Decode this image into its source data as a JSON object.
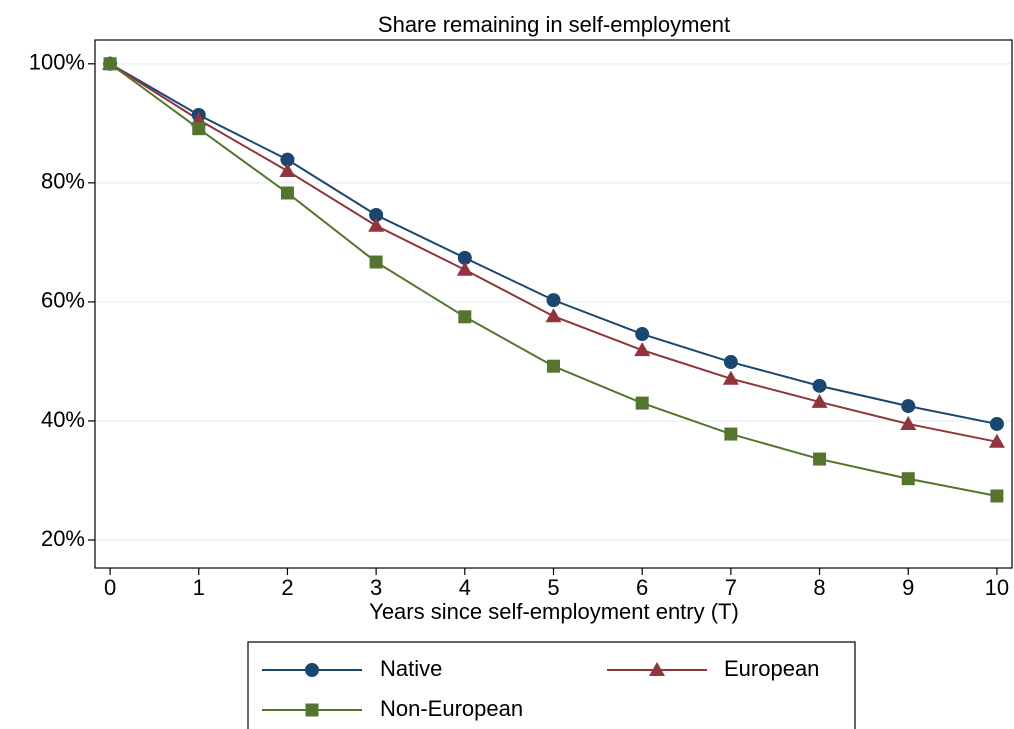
{
  "chart_data": {
    "type": "line",
    "title": "Share remaining in self-employment",
    "x_label": "Years since self-employment entry (T)",
    "x": [
      0,
      1,
      2,
      3,
      4,
      5,
      6,
      7,
      8,
      9,
      10
    ],
    "xlim": [
      -0.17,
      10.17
    ],
    "xticks": [
      0,
      1,
      2,
      3,
      4,
      5,
      6,
      7,
      8,
      9,
      10
    ],
    "ylim": [
      15.3,
      104
    ],
    "yticks": [
      {
        "value": 20,
        "label": "20%"
      },
      {
        "value": 40,
        "label": "40%"
      },
      {
        "value": 60,
        "label": "60%"
      },
      {
        "value": 80,
        "label": "80%"
      },
      {
        "value": 100,
        "label": "100%"
      }
    ],
    "grid": true,
    "legend": "bottom",
    "series": [
      {
        "name": "Native",
        "color": "#1a476f",
        "marker": "circle",
        "values": [
          100,
          91.4,
          83.9,
          74.6,
          67.4,
          60.3,
          54.6,
          49.9,
          45.9,
          42.5,
          39.5
        ]
      },
      {
        "name": "European",
        "color": "#90353b",
        "marker": "triangle",
        "values": [
          100,
          90.6,
          82,
          72.8,
          65.4,
          57.6,
          51.9,
          47.1,
          43.2,
          39.5,
          36.5
        ]
      },
      {
        "name": "Non-European",
        "color": "#55752f",
        "marker": "square",
        "values": [
          100,
          89.1,
          78.3,
          66.7,
          57.5,
          49.2,
          43,
          37.8,
          33.6,
          30.3,
          27.4
        ]
      }
    ]
  }
}
